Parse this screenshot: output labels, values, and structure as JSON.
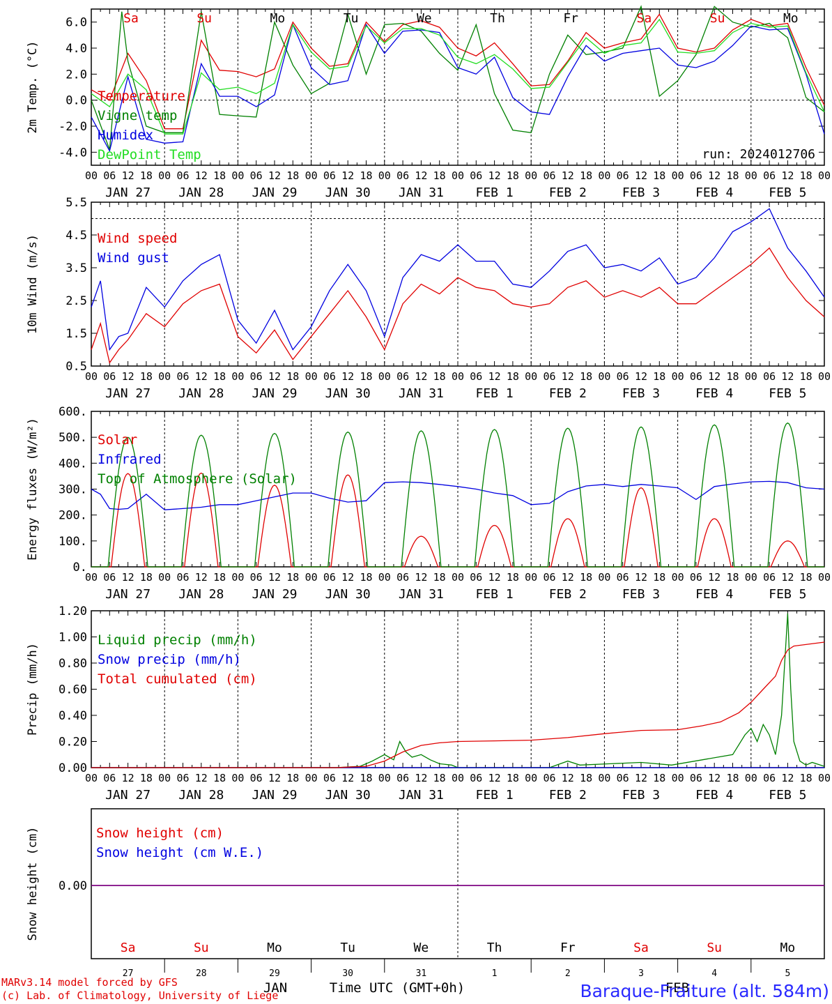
{
  "run_label": "run: 2024012706",
  "day_labels": [
    {
      "label": "Sa",
      "color": "#e00000"
    },
    {
      "label": "Su",
      "color": "#e00000"
    },
    {
      "label": "Mo",
      "color": "#000000"
    },
    {
      "label": "Tu",
      "color": "#000000"
    },
    {
      "label": "We",
      "color": "#000000"
    },
    {
      "label": "Th",
      "color": "#000000"
    },
    {
      "label": "Fr",
      "color": "#000000"
    },
    {
      "label": "Sa",
      "color": "#e00000"
    },
    {
      "label": "Su",
      "color": "#e00000"
    },
    {
      "label": "Mo",
      "color": "#000000"
    }
  ],
  "date_labels": [
    "JAN 27",
    "JAN 28",
    "JAN 29",
    "JAN 30",
    "JAN 31",
    "FEB  1",
    "FEB  2",
    "FEB  3",
    "FEB  4",
    "FEB  5"
  ],
  "hour_labels": [
    "00",
    "06",
    "12",
    "18"
  ],
  "bottom_day_numbers": [
    "27",
    "28",
    "29",
    "30",
    "31",
    "1",
    "2",
    "3",
    "4",
    "5"
  ],
  "footer": {
    "model": "MARv3.14 model forced by GFS",
    "lab": "(c) Lab. of Climatology, University of Liege",
    "month1": "JAN",
    "month2": "FEB",
    "time_axis": "Time UTC (GMT+0h)",
    "station": "Baraque-Fraiture (alt. 584m)"
  },
  "chart_data": [
    {
      "type": "line",
      "ylabel": "2m Temp. (°C)",
      "ylim": [
        -5,
        7
      ],
      "yticks": [
        6,
        4,
        2,
        0,
        -2,
        -4
      ],
      "ytick_labels": [
        "6.0",
        "4.0",
        "2.0",
        "0.0",
        "-2.0",
        "-4.0"
      ],
      "reference_line": 0,
      "x_unit": "hours since 2024-01-27 00 UTC",
      "series": [
        {
          "name": "Temperature",
          "color": "#e00000",
          "x": [
            0,
            6,
            12,
            18,
            24,
            30,
            36,
            42,
            48,
            54,
            60,
            66,
            72,
            78,
            84,
            90,
            96,
            102,
            108,
            114,
            120,
            126,
            132,
            138,
            144,
            150,
            156,
            162,
            168,
            174,
            180,
            186,
            192,
            198,
            204,
            210,
            216,
            222,
            228,
            234,
            240
          ],
          "y": [
            0.8,
            0.0,
            3.6,
            1.5,
            -2.2,
            -2.2,
            4.6,
            2.3,
            2.2,
            1.8,
            2.4,
            6.0,
            4.0,
            2.6,
            2.8,
            6.0,
            4.5,
            5.8,
            6.1,
            5.6,
            4.0,
            3.4,
            4.4,
            2.8,
            1.1,
            1.2,
            3.0,
            5.2,
            4.0,
            4.4,
            4.7,
            6.6,
            4.0,
            3.7,
            4.0,
            5.4,
            6.2,
            5.7,
            5.9,
            2.5,
            -0.4
          ]
        },
        {
          "name": "Vigne temp",
          "color": "#008000",
          "x": [
            0,
            6,
            10,
            12,
            18,
            24,
            30,
            36,
            42,
            48,
            54,
            60,
            66,
            72,
            78,
            84,
            90,
            96,
            102,
            108,
            114,
            120,
            126,
            132,
            138,
            144,
            150,
            156,
            162,
            168,
            174,
            180,
            186,
            192,
            198,
            204,
            210,
            216,
            222,
            228,
            234,
            240
          ],
          "y": [
            0.0,
            -3.8,
            6.8,
            3.0,
            -2.0,
            -2.5,
            -2.5,
            6.8,
            -1.1,
            -1.2,
            -1.3,
            6.0,
            2.7,
            0.5,
            1.3,
            6.6,
            2.0,
            5.8,
            5.9,
            5.3,
            3.6,
            2.3,
            5.8,
            0.5,
            -2.3,
            -2.5,
            2.0,
            5.0,
            3.5,
            3.7,
            4.0,
            7.2,
            0.3,
            1.5,
            3.5,
            7.2,
            6.0,
            5.6,
            5.9,
            4.8,
            0.2,
            -0.9
          ]
        },
        {
          "name": "Humidex",
          "color": "#0000e0",
          "x": [
            0,
            6,
            12,
            18,
            24,
            30,
            36,
            42,
            48,
            54,
            60,
            66,
            72,
            78,
            84,
            90,
            96,
            102,
            108,
            114,
            120,
            126,
            132,
            138,
            144,
            150,
            156,
            162,
            168,
            174,
            180,
            186,
            192,
            198,
            204,
            210,
            216,
            222,
            228,
            234,
            240
          ],
          "y": [
            -1.3,
            -3.9,
            1.8,
            -3.0,
            -3.3,
            -3.2,
            2.8,
            0.3,
            0.3,
            -0.5,
            0.4,
            5.8,
            2.5,
            1.2,
            1.5,
            5.8,
            3.6,
            5.3,
            5.4,
            5.2,
            2.5,
            2.0,
            3.3,
            0.2,
            -0.9,
            -1.1,
            1.8,
            4.2,
            3.0,
            3.6,
            3.8,
            4.0,
            2.7,
            2.5,
            3.0,
            4.2,
            5.7,
            5.4,
            5.5,
            2.0,
            -2.6
          ]
        },
        {
          "name": "DewPoint Temp",
          "color": "#22dd22",
          "x": [
            0,
            6,
            12,
            18,
            24,
            30,
            36,
            42,
            48,
            54,
            60,
            66,
            72,
            78,
            84,
            90,
            96,
            102,
            108,
            114,
            120,
            126,
            132,
            138,
            144,
            150,
            156,
            162,
            168,
            174,
            180,
            186,
            192,
            198,
            204,
            210,
            216,
            222,
            228,
            234,
            240
          ],
          "y": [
            0.5,
            -0.5,
            2.0,
            0.8,
            -2.6,
            -2.6,
            2.1,
            0.8,
            1.0,
            0.5,
            1.3,
            5.8,
            3.7,
            2.4,
            2.6,
            5.7,
            4.4,
            5.5,
            5.5,
            5.0,
            3.3,
            2.8,
            3.5,
            2.4,
            0.9,
            1.0,
            2.9,
            4.8,
            3.6,
            4.2,
            4.4,
            6.2,
            3.7,
            3.6,
            3.8,
            5.2,
            5.9,
            5.6,
            5.7,
            2.1,
            -0.9
          ]
        }
      ]
    },
    {
      "type": "line",
      "ylabel": "10m Wind (m/s)",
      "ylim": [
        0.5,
        5.5
      ],
      "yticks": [
        5.5,
        4.5,
        3.5,
        2.5,
        1.5,
        0.5
      ],
      "ytick_labels": [
        "5.5",
        "4.5",
        "3.5",
        "2.5",
        "1.5",
        "0.5"
      ],
      "reference_line": 5.0,
      "series": [
        {
          "name": "Wind speed",
          "color": "#e00000",
          "x": [
            0,
            3,
            6,
            9,
            12,
            18,
            24,
            30,
            36,
            42,
            48,
            54,
            60,
            66,
            72,
            78,
            84,
            90,
            96,
            102,
            108,
            114,
            120,
            126,
            132,
            138,
            144,
            150,
            156,
            162,
            168,
            174,
            180,
            186,
            192,
            198,
            204,
            210,
            216,
            222,
            228,
            234,
            240
          ],
          "y": [
            1.0,
            1.8,
            0.6,
            1.0,
            1.3,
            2.1,
            1.7,
            2.4,
            2.8,
            3.0,
            1.4,
            0.9,
            1.6,
            0.7,
            1.4,
            2.1,
            2.8,
            2.0,
            1.0,
            2.4,
            3.0,
            2.7,
            3.2,
            2.9,
            2.8,
            2.4,
            2.3,
            2.4,
            2.9,
            3.1,
            2.6,
            2.8,
            2.6,
            2.9,
            2.4,
            2.4,
            2.8,
            3.2,
            3.6,
            4.1,
            3.2,
            2.5,
            2.0
          ]
        },
        {
          "name": "Wind gust",
          "color": "#0000e0",
          "x": [
            0,
            3,
            6,
            9,
            12,
            18,
            24,
            30,
            36,
            42,
            48,
            54,
            60,
            66,
            72,
            78,
            84,
            90,
            96,
            102,
            108,
            114,
            120,
            126,
            132,
            138,
            144,
            150,
            156,
            162,
            168,
            174,
            180,
            186,
            192,
            198,
            204,
            210,
            216,
            222,
            228,
            234,
            240
          ],
          "y": [
            2.3,
            3.1,
            1.0,
            1.4,
            1.5,
            2.9,
            2.3,
            3.1,
            3.6,
            3.9,
            1.9,
            1.2,
            2.2,
            1.0,
            1.7,
            2.8,
            3.6,
            2.8,
            1.4,
            3.2,
            3.9,
            3.7,
            4.2,
            3.7,
            3.7,
            3.0,
            2.9,
            3.4,
            4.0,
            4.2,
            3.5,
            3.6,
            3.4,
            3.8,
            3.0,
            3.2,
            3.8,
            4.6,
            4.9,
            5.3,
            4.1,
            3.4,
            2.6
          ]
        }
      ]
    },
    {
      "type": "line",
      "ylabel": "Energy fluxes (W/m²)",
      "ylim": [
        0,
        600
      ],
      "yticks": [
        600,
        500,
        400,
        300,
        200,
        100,
        0
      ],
      "ytick_labels": [
        "600.",
        "500.",
        "400.",
        "300.",
        "200.",
        "100.",
        "0."
      ],
      "series": [
        {
          "name": "Solar",
          "color": "#e00000",
          "peaks": [
            [
              12,
              360
            ],
            [
              36,
              362
            ],
            [
              60,
              315
            ],
            [
              84,
              355
            ],
            [
              108,
              118
            ],
            [
              132,
              160
            ],
            [
              156,
              186
            ],
            [
              180,
              305
            ],
            [
              204,
              186
            ],
            [
              228,
              100
            ]
          ]
        },
        {
          "name": "Infrared",
          "color": "#0000e0",
          "x": [
            0,
            3,
            6,
            9,
            12,
            18,
            24,
            30,
            36,
            42,
            48,
            54,
            60,
            66,
            72,
            78,
            84,
            90,
            96,
            102,
            108,
            114,
            120,
            126,
            132,
            138,
            144,
            150,
            156,
            162,
            168,
            174,
            180,
            186,
            192,
            198,
            204,
            210,
            216,
            222,
            228,
            234,
            240
          ],
          "y": [
            300,
            280,
            225,
            222,
            225,
            280,
            220,
            225,
            230,
            240,
            240,
            255,
            270,
            285,
            285,
            265,
            250,
            255,
            325,
            328,
            325,
            318,
            310,
            300,
            285,
            275,
            240,
            245,
            290,
            312,
            318,
            310,
            318,
            312,
            305,
            260,
            310,
            320,
            328,
            330,
            325,
            305,
            300
          ]
        },
        {
          "name": "Top of Atmosphere (Solar)",
          "color": "#008000",
          "peaks": [
            [
              12,
              500
            ],
            [
              36,
              508
            ],
            [
              60,
              515
            ],
            [
              84,
              520
            ],
            [
              108,
              525
            ],
            [
              132,
              530
            ],
            [
              156,
              535
            ],
            [
              180,
              540
            ],
            [
              204,
              548
            ],
            [
              228,
              555
            ]
          ]
        }
      ]
    },
    {
      "type": "line",
      "ylabel": "Precip (mm/h)",
      "ylim": [
        0,
        1.2
      ],
      "yticks": [
        1.2,
        1.0,
        0.8,
        0.6,
        0.4,
        0.2,
        0.0
      ],
      "ytick_labels": [
        "1.20",
        "1.00",
        "0.80",
        "0.60",
        "0.40",
        "0.20",
        "0.00"
      ],
      "series": [
        {
          "name": "Liquid precip (mm/h)",
          "color": "#008000",
          "x": [
            0,
            80,
            88,
            92,
            96,
            99,
            101,
            103,
            105,
            108,
            111,
            114,
            118,
            120,
            150,
            156,
            160,
            170,
            180,
            190,
            200,
            210,
            214,
            216,
            218,
            220,
            222,
            224,
            226,
            228,
            229,
            230,
            232,
            234,
            236,
            240
          ],
          "y": [
            0,
            0,
            0.01,
            0.05,
            0.1,
            0.06,
            0.2,
            0.12,
            0.08,
            0.1,
            0.06,
            0.03,
            0.02,
            0,
            0,
            0.05,
            0.02,
            0.03,
            0.04,
            0.02,
            0.06,
            0.1,
            0.25,
            0.3,
            0.2,
            0.33,
            0.25,
            0.1,
            0.4,
            1.18,
            0.6,
            0.2,
            0.05,
            0.02,
            0.04,
            0.01
          ]
        },
        {
          "name": "Snow precip (mm/h)",
          "color": "#0000e0",
          "x": [
            0,
            240
          ],
          "y": [
            0,
            0
          ]
        },
        {
          "name": "Total cumulated (cm)",
          "color": "#e00000",
          "x": [
            0,
            80,
            90,
            96,
            102,
            108,
            114,
            120,
            132,
            144,
            156,
            168,
            180,
            192,
            200,
            206,
            212,
            216,
            220,
            224,
            226,
            228,
            230,
            240
          ],
          "y": [
            0,
            0,
            0.01,
            0.05,
            0.12,
            0.17,
            0.19,
            0.2,
            0.205,
            0.21,
            0.23,
            0.26,
            0.285,
            0.29,
            0.32,
            0.35,
            0.42,
            0.5,
            0.6,
            0.7,
            0.82,
            0.9,
            0.93,
            0.96
          ]
        }
      ]
    },
    {
      "type": "line",
      "ylabel": "Snow height (cm)",
      "ytick_labels": [
        "0.00"
      ],
      "series": [
        {
          "name": "Snow height (cm)",
          "color": "#e00000",
          "x": [
            0,
            240
          ],
          "y": [
            0,
            0
          ]
        },
        {
          "name": "Snow height (cm W.E.)",
          "color": "#0000e0",
          "x": [
            0,
            240
          ],
          "y": [
            0,
            0
          ]
        }
      ]
    }
  ]
}
